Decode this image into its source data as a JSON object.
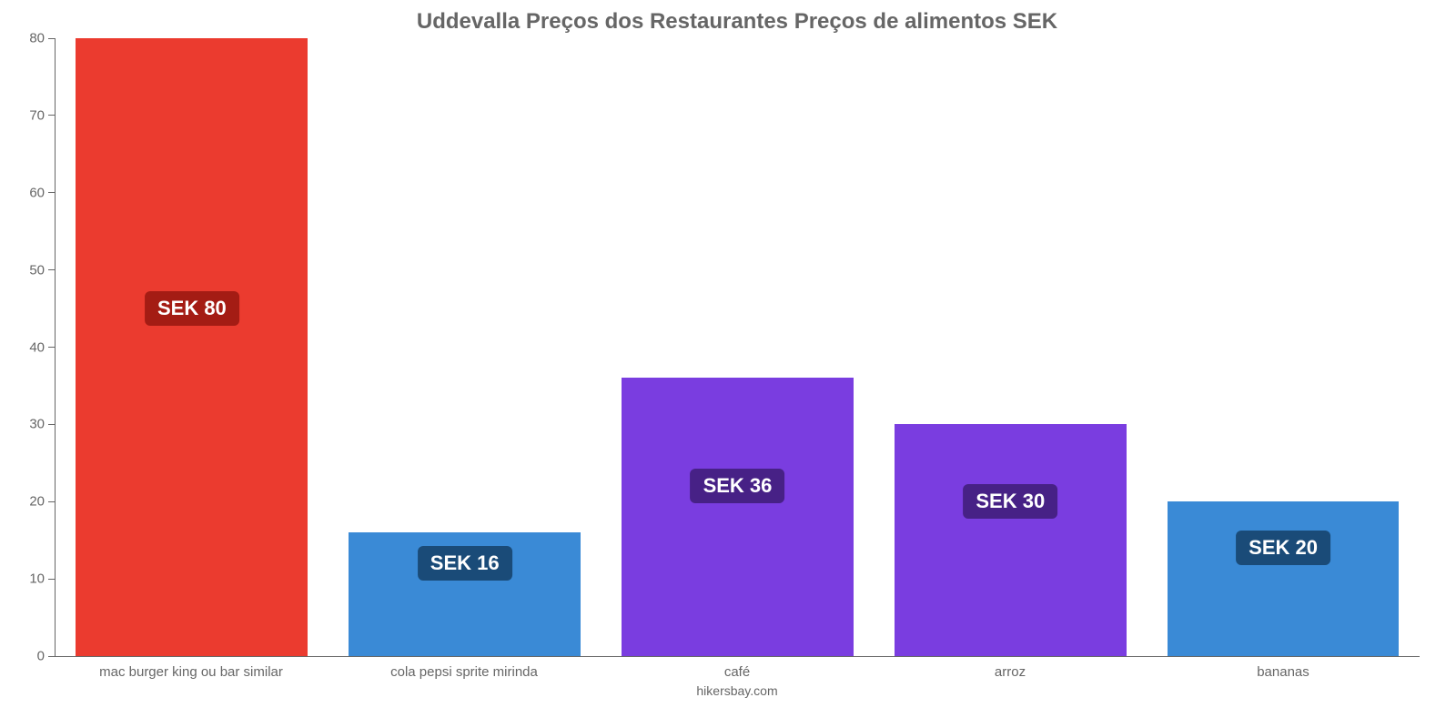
{
  "chart": {
    "type": "bar",
    "title": "Uddevalla Preços dos Restaurantes Preços de alimentos SEK",
    "title_fontsize": 24,
    "title_color": "#666666",
    "attribution": "hikersbay.com",
    "attribution_fontsize": 14,
    "background_color": "#ffffff",
    "axis_color": "#666666",
    "tick_label_color": "#666666",
    "tick_label_fontsize": 15,
    "x_label_fontsize": 15,
    "value_label_fontsize": 22,
    "value_label_text_color": "#ffffff",
    "ylim": [
      0,
      80
    ],
    "ytick_step": 10,
    "yticks": [
      0,
      10,
      20,
      30,
      40,
      50,
      60,
      70,
      80
    ],
    "bar_width_ratio": 0.85,
    "bars": [
      {
        "category": "mac burger king ou bar similar",
        "value": 80,
        "value_label": "SEK 80",
        "bar_color": "#eb3b2f",
        "badge_color": "#a41c14",
        "value_label_y": 45
      },
      {
        "category": "cola pepsi sprite mirinda",
        "value": 16,
        "value_label": "SEK 16",
        "bar_color": "#3a8ad6",
        "badge_color": "#1a4b78",
        "value_label_y": 12
      },
      {
        "category": "café",
        "value": 36,
        "value_label": "SEK 36",
        "bar_color": "#7a3de0",
        "badge_color": "#472186",
        "value_label_y": 22
      },
      {
        "category": "arroz",
        "value": 30,
        "value_label": "SEK 30",
        "bar_color": "#7a3de0",
        "badge_color": "#472186",
        "value_label_y": 20
      },
      {
        "category": "bananas",
        "value": 20,
        "value_label": "SEK 20",
        "bar_color": "#3a8ad6",
        "badge_color": "#1a4b78",
        "value_label_y": 14
      }
    ]
  }
}
